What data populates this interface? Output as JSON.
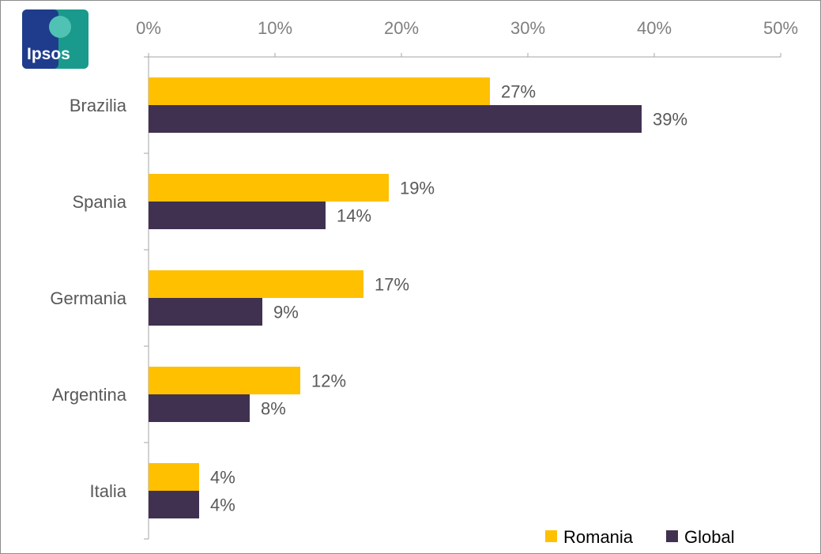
{
  "logo": {
    "text": "Ipsos"
  },
  "colors": {
    "romania": "#FFC000",
    "global": "#403151",
    "axis": "#a6a6a6",
    "logo_blue": "#1f3c8c",
    "logo_teal": "#1a9a8c"
  },
  "chart_data": {
    "type": "bar",
    "orientation": "horizontal",
    "categories": [
      "Brazilia",
      "Spania",
      "Germania",
      "Argentina",
      "Italia"
    ],
    "series": [
      {
        "name": "Romania",
        "values": [
          27,
          19,
          17,
          12,
          4
        ],
        "labels": [
          "27%",
          "19%",
          "17%",
          "12%",
          "4%"
        ]
      },
      {
        "name": "Global",
        "values": [
          39,
          14,
          9,
          8,
          4
        ],
        "labels": [
          "39%",
          "14%",
          "9%",
          "8%",
          "4%"
        ]
      }
    ],
    "xticks": [
      "0%",
      "10%",
      "20%",
      "30%",
      "40%",
      "50%"
    ],
    "xlim": [
      0,
      50
    ],
    "axis_position": "top",
    "legend_position": "bottom-right",
    "title": "",
    "xlabel": "",
    "ylabel": ""
  }
}
